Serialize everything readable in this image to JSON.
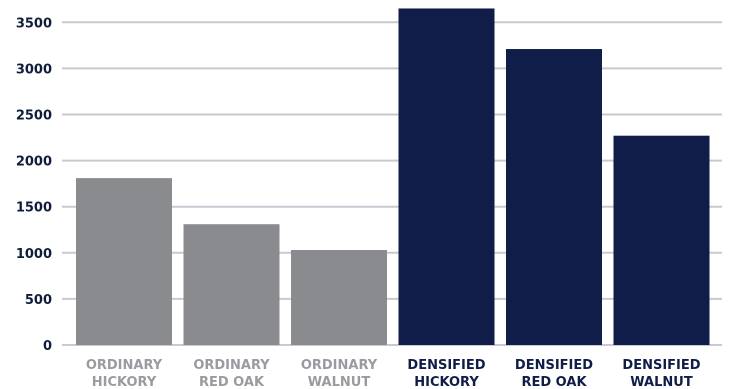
{
  "chart_data": {
    "type": "bar",
    "categories": [
      [
        "ORDINARY",
        "HICKORY"
      ],
      [
        "ORDINARY",
        "RED OAK"
      ],
      [
        "ORDINARY",
        "WALNUT"
      ],
      [
        "DENSIFIED",
        "HICKORY"
      ],
      [
        "DENSIFIED",
        "RED OAK"
      ],
      [
        "DENSIFIED",
        "WALNUT"
      ]
    ],
    "values": [
      1810,
      1310,
      1030,
      3650,
      3210,
      2270
    ],
    "ylim": [
      0,
      3600
    ],
    "yticks": [
      0,
      500,
      1000,
      1500,
      2000,
      2500,
      3000,
      3500
    ],
    "grid": true,
    "colors": {
      "ordinary_bar": "#8a8b8f",
      "densified_bar": "#0f1d48",
      "ordinary_label": "#9a9ba0",
      "densified_label": "#0f1d48"
    },
    "bar_groups": [
      "ordinary",
      "ordinary",
      "ordinary",
      "densified",
      "densified",
      "densified"
    ]
  }
}
